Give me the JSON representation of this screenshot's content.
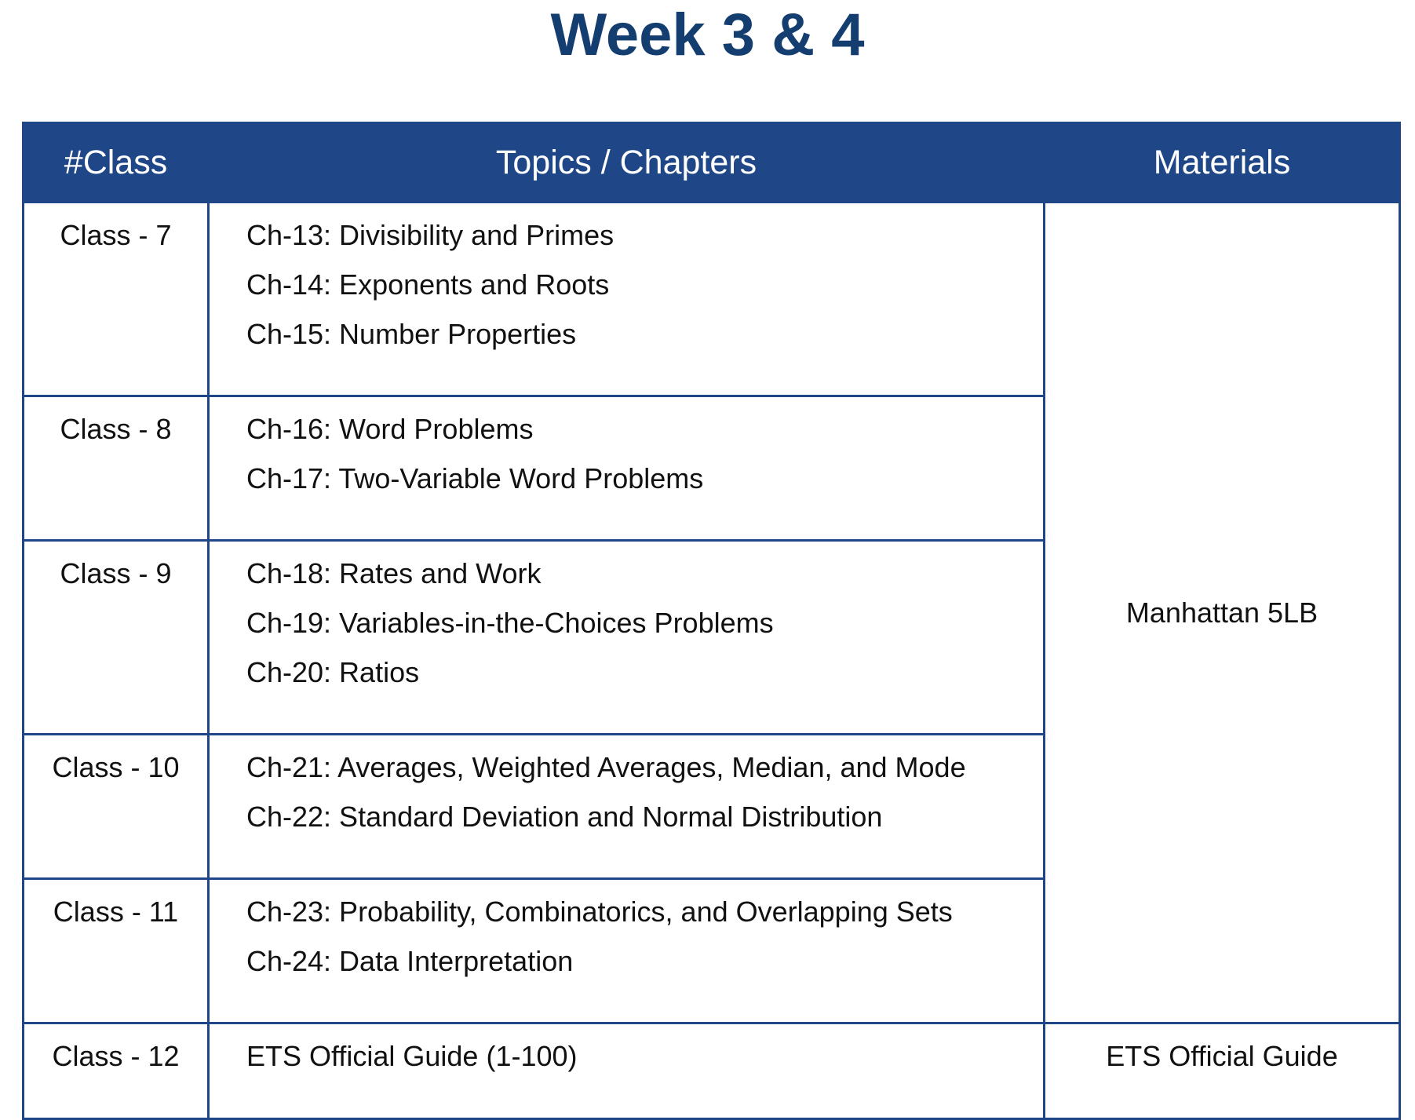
{
  "title": "Week 3 & 4",
  "table": {
    "headers": {
      "class": "#Class",
      "topics": "Topics / Chapters",
      "materials": "Materials"
    },
    "rows": [
      {
        "class": "Class - 7",
        "topics": [
          "Ch-13: Divisibility and Primes",
          "Ch-14: Exponents and Roots",
          "Ch-15: Number Properties"
        ]
      },
      {
        "class": "Class - 8",
        "topics": [
          "Ch-16: Word Problems",
          "Ch-17: Two-Variable Word Problems"
        ]
      },
      {
        "class": "Class - 9",
        "topics": [
          "Ch-18: Rates and Work",
          "Ch-19: Variables-in-the-Choices Problems",
          "Ch-20: Ratios"
        ]
      },
      {
        "class": "Class - 10",
        "topics": [
          "Ch-21: Averages, Weighted Averages, Median, and Mode",
          "Ch-22: Standard Deviation and Normal Distribution"
        ]
      },
      {
        "class": "Class - 11",
        "topics": [
          "Ch-23: Probability, Combinatorics, and Overlapping Sets",
          "Ch-24: Data Interpretation"
        ]
      },
      {
        "class": "Class - 12",
        "topics": [
          "ETS Official Guide (1-100)"
        ]
      }
    ],
    "materials": [
      "Manhattan 5LB",
      "ETS Official Guide"
    ]
  },
  "colors": {
    "title": "#153e70",
    "header_bg": "#1f4788",
    "border": "#1f4788"
  }
}
